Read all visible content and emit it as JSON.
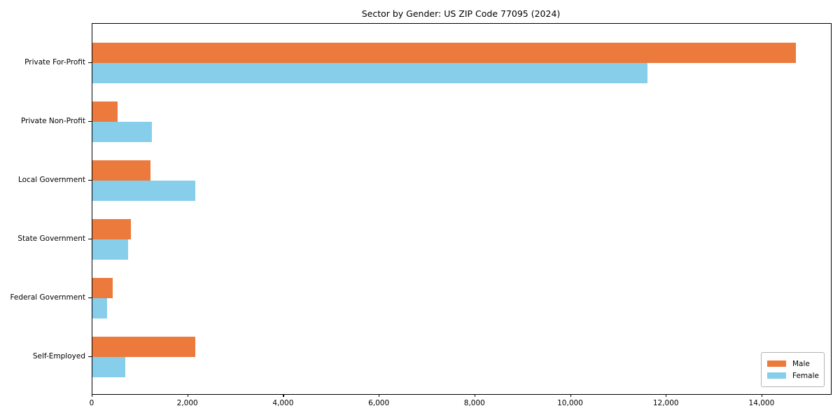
{
  "chart_data": {
    "type": "bar",
    "orientation": "horizontal",
    "title": "Sector by Gender: US ZIP Code 77095 (2024)",
    "categories": [
      "Private For-Profit",
      "Private Non-Profit",
      "Local Government",
      "State Government",
      "Federal Government",
      "Self-Employed"
    ],
    "series": [
      {
        "name": "Male",
        "color": "#EB7A3C",
        "values": [
          14700,
          520,
          1210,
          800,
          420,
          2150
        ]
      },
      {
        "name": "Female",
        "color": "#87CEEB",
        "values": [
          11600,
          1250,
          2150,
          740,
          310,
          690
        ]
      }
    ],
    "xlabel": "",
    "ylabel": "",
    "xlim": [
      0,
      15435
    ],
    "xticks": [
      {
        "value": 0,
        "label": "0"
      },
      {
        "value": 2000,
        "label": "2,000"
      },
      {
        "value": 4000,
        "label": "4,000"
      },
      {
        "value": 6000,
        "label": "6,000"
      },
      {
        "value": 8000,
        "label": "8,000"
      },
      {
        "value": 10000,
        "label": "10,000"
      },
      {
        "value": 12000,
        "label": "12,000"
      },
      {
        "value": 14000,
        "label": "14,000"
      }
    ],
    "grid": false,
    "legend": {
      "position": "lower right"
    }
  },
  "colors": {
    "spine": "#000000",
    "background": "#ffffff",
    "male": "#EB7A3C",
    "female": "#87CEEB"
  }
}
